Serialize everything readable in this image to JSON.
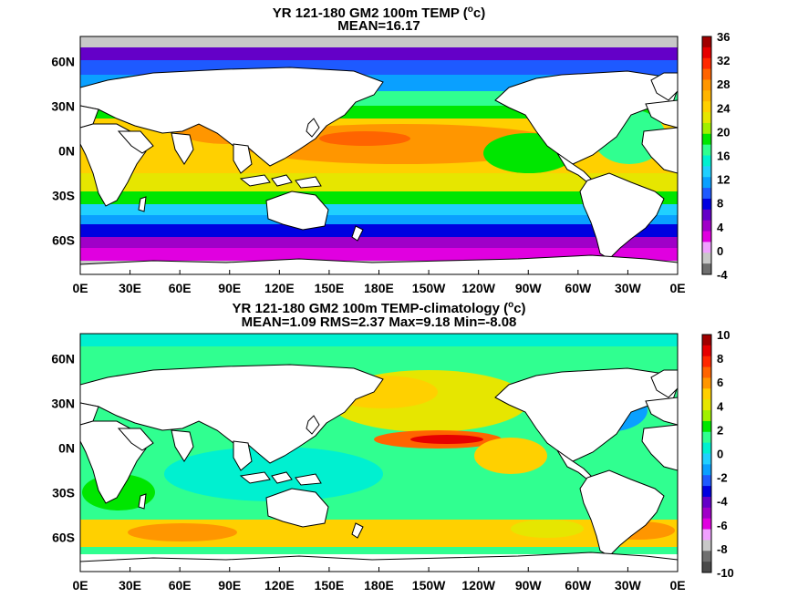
{
  "colors": {
    "ramp_main": [
      "#6f6f6f",
      "#c8c8c8",
      "#f0a0ff",
      "#e000e0",
      "#a000c8",
      "#6400c8",
      "#0000e0",
      "#1e5aff",
      "#0aa0ff",
      "#20d0ff",
      "#00f0d0",
      "#30ff90",
      "#00e600",
      "#a0f000",
      "#e6e600",
      "#ffd000",
      "#ffb400",
      "#ff9600",
      "#ff6400",
      "#ff2800",
      "#e60000",
      "#a00000"
    ],
    "land": "#ffffff",
    "ice": "#c8c8c8",
    "coast": "#000000"
  },
  "panels": [
    {
      "id": "top",
      "title_line1_pre": "YR 121-180 GM2 100m TEMP (",
      "title_line1_sup": "o",
      "title_line1_post": "c)",
      "title_line2": "MEAN=16.17",
      "lon_ticks": [
        "0E",
        "30E",
        "60E",
        "90E",
        "120E",
        "150E",
        "180E",
        "150W",
        "120W",
        "90W",
        "60W",
        "30W",
        "0E"
      ],
      "lat_ticks": [
        "60N",
        "30N",
        "0N",
        "30S",
        "60S"
      ],
      "colorbar_labels": [
        "36",
        "32",
        "28",
        "24",
        "20",
        "16",
        "12",
        "8",
        "4",
        "0",
        "-4"
      ],
      "colorbar_colors": [
        "#a00000",
        "#e60000",
        "#ff2800",
        "#ff6400",
        "#ff9600",
        "#ffb400",
        "#ffd000",
        "#e6e600",
        "#a0f000",
        "#00e600",
        "#30ff90",
        "#00f0d0",
        "#20d0ff",
        "#0aa0ff",
        "#1e5aff",
        "#0000e0",
        "#6400c8",
        "#a000c8",
        "#e000e0",
        "#f0a0ff",
        "#c8c8c8",
        "#6f6f6f"
      ]
    },
    {
      "id": "bottom",
      "title_line1_pre": "YR 121-180 GM2 100m TEMP-climatology (",
      "title_line1_sup": "o",
      "title_line1_post": "c)",
      "title_line2": "MEAN=1.09   RMS=2.37   Max=9.18   Min=-8.08",
      "lon_ticks": [
        "0E",
        "30E",
        "60E",
        "90E",
        "120E",
        "150E",
        "180E",
        "150W",
        "120W",
        "90W",
        "60W",
        "30W",
        "0E"
      ],
      "lat_ticks": [
        "60N",
        "30N",
        "0N",
        "30S",
        "60S"
      ],
      "colorbar_labels": [
        "10",
        "8",
        "6",
        "4",
        "2",
        "0",
        "-2",
        "-4",
        "-6",
        "-8",
        "-10"
      ],
      "colorbar_colors": [
        "#a00000",
        "#e60000",
        "#ff2800",
        "#ff6400",
        "#ff9600",
        "#ffd000",
        "#e6e600",
        "#a0f000",
        "#00e600",
        "#30ff90",
        "#00f0d0",
        "#20d0ff",
        "#0aa0ff",
        "#1e5aff",
        "#0000e0",
        "#6400c8",
        "#a000c8",
        "#e000e0",
        "#f0a0ff",
        "#c8c8c8",
        "#6f6f6f",
        "#4a4a4a"
      ]
    }
  ]
}
